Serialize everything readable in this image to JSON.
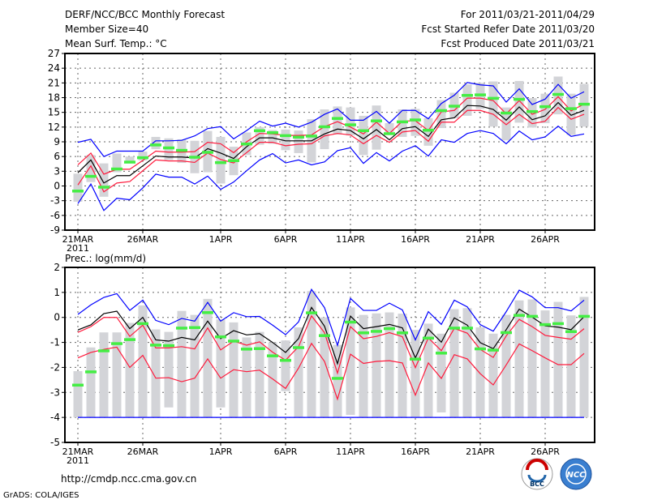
{
  "header": {
    "title": "DERF/NCC/BCC Monthly Forecast",
    "member": "Member Size=40",
    "variable": "Mean Surf. Temp.: °C",
    "period": "For 2011/03/21-2011/04/29",
    "started": "Fcst Started Refer Date 2011/03/20",
    "produced": "Fcst Produced Date 2011/03/21"
  },
  "footer": {
    "url": "http://cmdp.ncc.cma.gov.cn",
    "credit": "GrADS: COLA/IGES",
    "logo1": "BCC",
    "logo2": "NCC"
  },
  "colors": {
    "mean": "#000000",
    "pct": "#ff1a3c",
    "extreme": "#0000ff",
    "median": "#44ee44",
    "box": "#d3d4d8"
  },
  "chart_data": [
    {
      "type": "line",
      "title": "Mean Surf. Temp.: °C",
      "xlabels": [
        "21MAR",
        "26MAR",
        "1APR",
        "6APR",
        "11APR",
        "16APR",
        "21APR",
        "26APR"
      ],
      "xlabel_days": [
        0,
        5,
        11,
        16,
        21,
        26,
        31,
        36
      ],
      "year_label": "2011",
      "ylim": [
        -9,
        27
      ],
      "yticks": [
        -9,
        -6,
        -3,
        0,
        3,
        6,
        9,
        12,
        15,
        18,
        21,
        24,
        27
      ],
      "grid": true,
      "mean": [
        2.7,
        5.3,
        0.6,
        2.1,
        2.1,
        4.1,
        6.1,
        5.9,
        5.9,
        5.7,
        7.6,
        6.7,
        5.6,
        8,
        9.8,
        9.8,
        9.2,
        9.2,
        9.2,
        10.6,
        11.6,
        11.3,
        9.6,
        11.5,
        9.4,
        11.7,
        12.1,
        10.1,
        13.5,
        13.9,
        16.4,
        16.3,
        15.6,
        13.4,
        16.1,
        13.5,
        14.3,
        17,
        14.4,
        15.4
      ],
      "upper_pct": [
        4.3,
        6.7,
        2.4,
        3.4,
        3.4,
        5.2,
        7.1,
        6.9,
        6.9,
        7,
        8.9,
        8.6,
        6.8,
        9,
        10.7,
        10.6,
        10.3,
        10.3,
        10.4,
        12.1,
        13.1,
        12,
        10.6,
        13,
        10.7,
        13.2,
        13.3,
        11.3,
        15.1,
        15.4,
        17.9,
        17.9,
        17.4,
        14.7,
        17.4,
        14.6,
        15.6,
        18.2,
        15.3,
        16.7
      ],
      "lower_pct": [
        0.2,
        4.1,
        -1.2,
        0.6,
        0.9,
        3.1,
        5.3,
        5.1,
        5.1,
        4.8,
        6.7,
        5.4,
        4.7,
        6.8,
        8.9,
        8.9,
        8.2,
        8.5,
        8.6,
        10.2,
        10.7,
        10.4,
        8.6,
        10.3,
        8.9,
        11,
        11.3,
        9.1,
        13,
        13,
        15.4,
        15.4,
        14.6,
        12.5,
        14.6,
        12.7,
        13.2,
        16,
        13.6,
        14.6
      ],
      "upper_extreme": [
        8.9,
        9.5,
        6,
        7.1,
        7.1,
        7.1,
        9.2,
        9.2,
        9.3,
        10.2,
        11.7,
        12.1,
        9.6,
        11.3,
        13.2,
        12.2,
        12.8,
        12,
        13,
        14.6,
        15.7,
        13.4,
        13.4,
        15.2,
        12.8,
        15.4,
        15.4,
        13.7,
        16.8,
        18.5,
        21.1,
        20.6,
        20.4,
        17.1,
        19.8,
        16.6,
        17.7,
        20.7,
        17.9,
        19.2
      ],
      "lower_extreme": [
        -3.6,
        0.4,
        -5,
        -2.5,
        -2.8,
        -0.4,
        2.4,
        1.8,
        1.8,
        0.4,
        2,
        -0.7,
        0.8,
        3.1,
        5.3,
        6.6,
        4.7,
        5.3,
        4.3,
        4.9,
        7.2,
        7.8,
        4.6,
        6.8,
        5.1,
        7.1,
        8.2,
        6.1,
        9.4,
        8.9,
        10.7,
        11.3,
        10.7,
        8.6,
        11.2,
        9.4,
        10,
        12.2,
        10.1,
        10.6
      ],
      "median": [
        -1,
        2,
        -0.2,
        3.5,
        4.9,
        5.8,
        8.4,
        7.8,
        7.3,
        5.9,
        6.9,
        4.8,
        5.2,
        8.6,
        11.3,
        10.9,
        10.3,
        10,
        10.2,
        12.1,
        13.8,
        12.5,
        11.3,
        13.3,
        10.7,
        13.1,
        13.5,
        11.4,
        15.4,
        16.3,
        18.5,
        18.6,
        17.9,
        14.9,
        17.7,
        15.2,
        16.2,
        18.7,
        15.8,
        16.7
      ],
      "box_low": [
        -3.2,
        0.8,
        -2.2,
        2.8,
        4.6,
        5.2,
        7.5,
        5.3,
        4.7,
        2.6,
        2.8,
        0.5,
        2.2,
        6.3,
        8.4,
        8.6,
        7.3,
        6.7,
        4.8,
        7.5,
        10.5,
        10.3,
        6.3,
        7.4,
        11,
        10,
        10.2,
        8.2,
        11.8,
        13.8,
        14.3,
        15.7,
        12.1,
        9.3,
        12.9,
        11.9,
        12.8,
        14.6,
        10.4,
        12.1
      ],
      "box_high": [
        2.5,
        6.3,
        4.6,
        6.6,
        6,
        7,
        10,
        9.7,
        9.5,
        9.2,
        11.2,
        10,
        8,
        10.9,
        12,
        11.4,
        11.5,
        11.3,
        13.6,
        15.6,
        16.2,
        16,
        14.3,
        16.4,
        12.8,
        15.6,
        15.7,
        13.8,
        17.5,
        19,
        20.7,
        21,
        21.3,
        16,
        21.4,
        17.9,
        18.8,
        22.3,
        18.8,
        20.8
      ]
    },
    {
      "type": "line",
      "title": "Prec.: log(mm/d)",
      "xlabels": [
        "21MAR",
        "26MAR",
        "1APR",
        "6APR",
        "11APR",
        "16APR",
        "21APR",
        "26APR"
      ],
      "xlabel_days": [
        0,
        5,
        11,
        16,
        21,
        26,
        31,
        36
      ],
      "year_label": "2011",
      "ylim": [
        -5,
        2
      ],
      "yticks": [
        -5,
        -4,
        -3,
        -2,
        -1,
        0,
        1,
        2
      ],
      "grid": true,
      "mean": [
        -0.5,
        -0.3,
        0.15,
        0.25,
        -0.45,
        0,
        -0.9,
        -0.95,
        -0.8,
        -0.9,
        -0.15,
        -0.85,
        -0.53,
        -0.7,
        -0.65,
        -1,
        -1.4,
        -0.85,
        0.4,
        -0.35,
        -1.85,
        0.05,
        -0.45,
        -0.37,
        -0.28,
        -0.42,
        -1.62,
        -0.47,
        -0.99,
        -0.02,
        -0.31,
        -1.01,
        -1.25,
        -0.49,
        0.33,
        0.01,
        -0.34,
        -0.39,
        -0.49,
        0.03
      ],
      "upper_pct": [
        -0.6,
        -0.37,
        0,
        0,
        -0.76,
        -0.31,
        -1.22,
        -1.22,
        -1.17,
        -1.26,
        -0.42,
        -1.3,
        -0.95,
        -1.11,
        -0.98,
        -1.39,
        -1.71,
        -1.17,
        0.06,
        -0.61,
        -2.23,
        -0.37,
        -0.85,
        -0.76,
        -0.61,
        -0.77,
        -2.01,
        -0.82,
        -1.33,
        -0.44,
        -0.63,
        -1.28,
        -1.6,
        -0.74,
        -0.08,
        -0.37,
        -0.72,
        -0.8,
        -0.87,
        -0.45
      ],
      "lower_pct": [
        -1.62,
        -1.4,
        -1.28,
        -1.19,
        -2,
        -1.52,
        -2.43,
        -2.41,
        -2.57,
        -2.43,
        -1.66,
        -2.43,
        -2.09,
        -2.17,
        -2.11,
        -2.46,
        -2.84,
        -2.03,
        -1.04,
        -1.76,
        -3.27,
        -1.47,
        -1.84,
        -1.76,
        -1.73,
        -1.82,
        -3.11,
        -1.82,
        -2.44,
        -1.49,
        -1.66,
        -2.25,
        -2.7,
        -1.9,
        -1.06,
        -1.33,
        -1.62,
        -1.89,
        -1.89,
        -1.44
      ],
      "upper_extreme": [
        0.12,
        0.5,
        0.8,
        0.95,
        0.28,
        0.69,
        -0.12,
        -0.29,
        -0.04,
        -0.15,
        0.6,
        -0.15,
        0.19,
        0.03,
        0.04,
        -0.31,
        -0.69,
        -0.18,
        1.12,
        0.39,
        -1.12,
        0.76,
        0.28,
        0.28,
        0.57,
        0.3,
        -0.9,
        0.23,
        -0.28,
        0.69,
        0.42,
        -0.29,
        -0.55,
        0.23,
        1.09,
        0.82,
        0.39,
        0.39,
        0.26,
        0.69
      ],
      "lower_extreme": [
        -4,
        -4,
        -4,
        -4,
        -4,
        -4,
        -4,
        -4,
        -4,
        -4,
        -4,
        -4,
        -4,
        -4,
        -4,
        -4,
        -4,
        -4,
        -4,
        -4,
        -4,
        -4,
        -4,
        -4,
        -4,
        -4,
        -4,
        -4,
        -4,
        -4,
        -4,
        -4,
        -4,
        -4,
        -4,
        -4,
        -4,
        -4,
        -4,
        -4
      ],
      "median": [
        -2.7,
        -2.17,
        -1.33,
        -1.04,
        -0.88,
        -0.24,
        -1.1,
        -1.12,
        -0.42,
        -0.4,
        0.2,
        -0.77,
        -0.94,
        -1.26,
        -1.24,
        -1.53,
        -1.71,
        -1.2,
        0.19,
        -0.72,
        -2.43,
        -0.18,
        -0.61,
        -0.55,
        -0.44,
        -0.61,
        -1.66,
        -0.82,
        -1.42,
        -0.42,
        -0.42,
        -1.25,
        -1.3,
        -0.6,
        0.09,
        0.05,
        -0.28,
        -0.24,
        -0.56,
        0.05
      ],
      "box_low": [
        -4,
        -4,
        -4,
        -4,
        -4,
        -4,
        -4,
        -3.6,
        -4,
        -4,
        -4,
        -3.6,
        -4,
        -4,
        -4,
        -4,
        -2.95,
        -4,
        -4,
        -4,
        -4,
        -3.9,
        -4,
        -4,
        -4,
        -4,
        -4,
        -4,
        -3.8,
        -4,
        -4,
        -4,
        -4,
        -4,
        -4,
        -4,
        -4,
        -4,
        -4,
        -4
      ],
      "box_high": [
        -2.15,
        -1.2,
        -0.6,
        -0.6,
        -0.22,
        0.48,
        -0.48,
        -0.58,
        0.26,
        0.1,
        0.74,
        -0.08,
        -0.2,
        -0.8,
        -0.58,
        -1,
        -0.92,
        -0.4,
        1.05,
        0,
        -1.1,
        0.4,
        0.1,
        0.16,
        0.2,
        0.15,
        -0.5,
        -0.25,
        -0.65,
        0.33,
        0.37,
        -0.4,
        -0.65,
        0.1,
        0.68,
        0.72,
        0.28,
        0.62,
        0.08,
        0.82
      ]
    }
  ]
}
